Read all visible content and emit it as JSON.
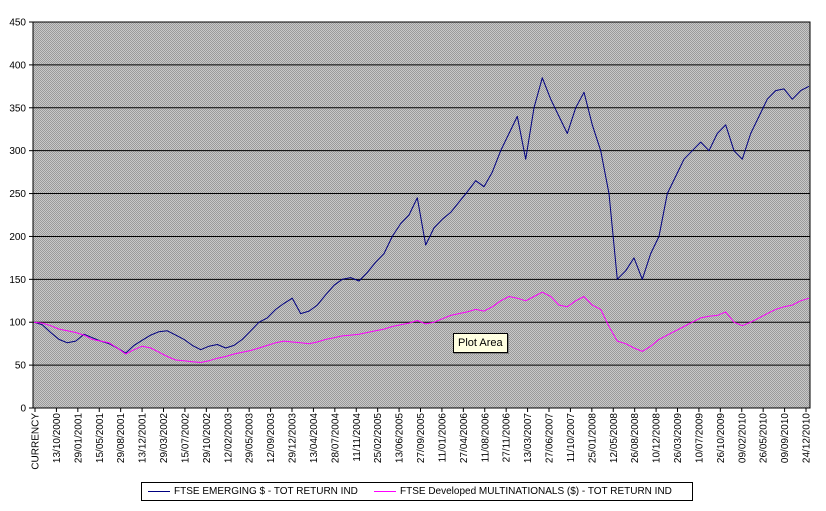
{
  "chart_data": {
    "type": "line",
    "title": "",
    "xlabel": "",
    "ylabel": "",
    "ylim": [
      0,
      450
    ],
    "yticks": [
      0,
      50,
      100,
      150,
      200,
      250,
      300,
      350,
      400,
      450
    ],
    "x_tick_labels": [
      "CURRENCY",
      "13/10/2000",
      "29/01/2001",
      "15/05/2001",
      "29/08/2001",
      "13/12/2001",
      "29/03/2002",
      "15/07/2002",
      "29/10/2002",
      "12/02/2003",
      "29/05/2003",
      "12/09/2003",
      "29/12/2003",
      "13/04/2004",
      "28/07/2004",
      "11/11/2004",
      "25/02/2005",
      "13/06/2005",
      "27/09/2005",
      "11/01/2006",
      "27/04/2006",
      "11/08/2006",
      "27/11/2006",
      "13/03/2007",
      "27/06/2007",
      "11/10/2007",
      "25/01/2008",
      "12/05/2008",
      "26/08/2008",
      "10/12/2008",
      "26/03/2009",
      "10/07/2009",
      "26/10/2009",
      "09/02/2010",
      "26/05/2010",
      "09/09/2010",
      "24/12/2010"
    ],
    "grid": true,
    "legend_position": "bottom",
    "background": "stippled gray",
    "series": [
      {
        "name": "FTSE EMERGING $ - TOT RETURN IND",
        "color": "#000080",
        "values": [
          100,
          97,
          88,
          80,
          76,
          78,
          86,
          82,
          78,
          75,
          70,
          64,
          73,
          79,
          85,
          89,
          90,
          85,
          80,
          73,
          68,
          72,
          74,
          70,
          73,
          80,
          90,
          100,
          105,
          115,
          122,
          128,
          110,
          113,
          120,
          132,
          143,
          150,
          152,
          148,
          158,
          170,
          180,
          200,
          215,
          225,
          245,
          190,
          210,
          220,
          228,
          240,
          252,
          265,
          258,
          275,
          300,
          320,
          340,
          290,
          350,
          385,
          360,
          340,
          320,
          350,
          368,
          330,
          300,
          250,
          150,
          160,
          175,
          150,
          180,
          200,
          250,
          270,
          290,
          300,
          310,
          300,
          320,
          330,
          300,
          290,
          320,
          340,
          360,
          370,
          372,
          360,
          370,
          375
        ]
      },
      {
        "name": "FTSE Developed MULTINATIONALS ($) - TOT RETURN IND",
        "color": "#ff00ff",
        "values": [
          100,
          99,
          96,
          92,
          90,
          88,
          85,
          80,
          78,
          76,
          70,
          63,
          68,
          72,
          70,
          65,
          60,
          56,
          55,
          54,
          53,
          55,
          58,
          60,
          63,
          65,
          67,
          70,
          73,
          76,
          78,
          77,
          76,
          75,
          77,
          80,
          82,
          84,
          85,
          86,
          88,
          90,
          92,
          95,
          97,
          99,
          102,
          98,
          100,
          104,
          108,
          110,
          112,
          115,
          113,
          118,
          125,
          130,
          128,
          125,
          130,
          135,
          130,
          120,
          118,
          125,
          130,
          120,
          115,
          95,
          78,
          75,
          70,
          66,
          72,
          80,
          85,
          90,
          95,
          100,
          105,
          107,
          108,
          112,
          100,
          96,
          100,
          105,
          110,
          115,
          118,
          120,
          125,
          128
        ]
      }
    ]
  },
  "tooltip": {
    "text": "Plot Area"
  }
}
